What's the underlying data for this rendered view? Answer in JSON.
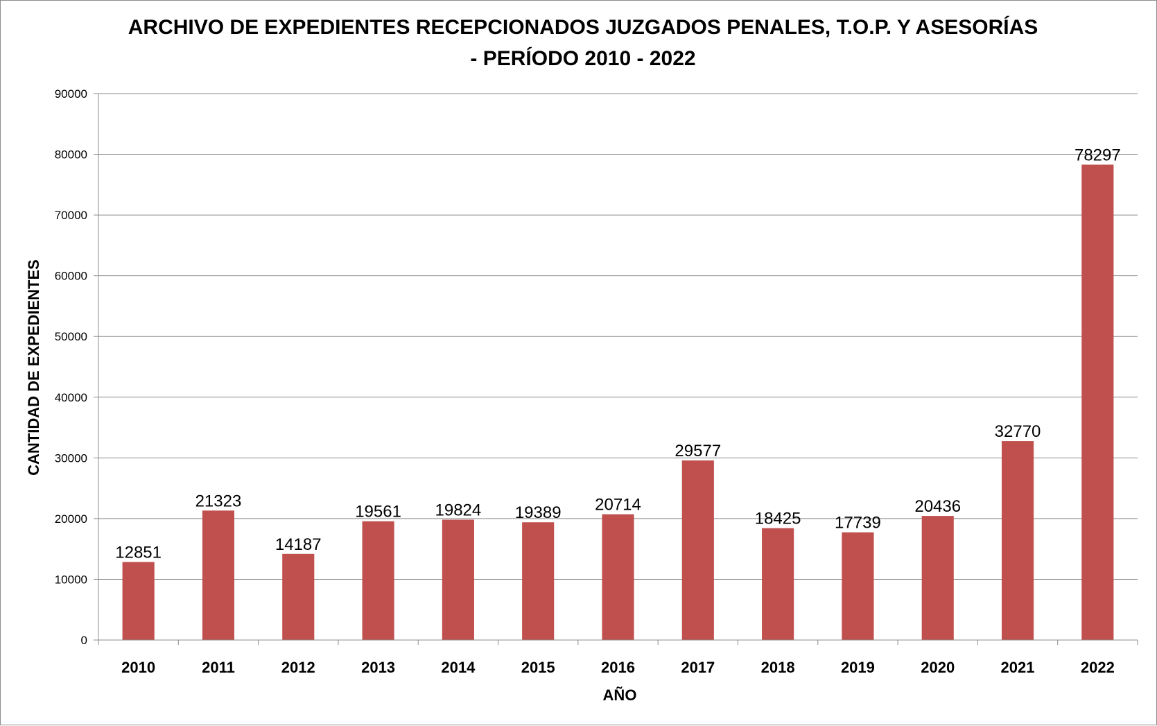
{
  "chart_data": {
    "type": "bar",
    "title_line1": "ARCHIVO DE EXPEDIENTES RECEPCIONADOS JUZGADOS PENALES, T.O.P. Y ASESORÍAS",
    "title_line2": "- PERÍODO 2010 - 2022",
    "xlabel": "AÑO",
    "ylabel": "CANTIDAD DE EXPEDIENTES",
    "categories": [
      "2010",
      "2011",
      "2012",
      "2013",
      "2014",
      "2015",
      "2016",
      "2017",
      "2018",
      "2019",
      "2020",
      "2021",
      "2022"
    ],
    "values": [
      12851,
      21323,
      14187,
      19561,
      19824,
      19389,
      20714,
      29577,
      18425,
      17739,
      20436,
      32770,
      78297
    ],
    "ylim": [
      0,
      90000
    ],
    "yticks": [
      0,
      10000,
      20000,
      30000,
      40000,
      50000,
      60000,
      70000,
      80000,
      90000
    ],
    "grid": true,
    "legend": "none",
    "bar_color": "#c0504d"
  }
}
